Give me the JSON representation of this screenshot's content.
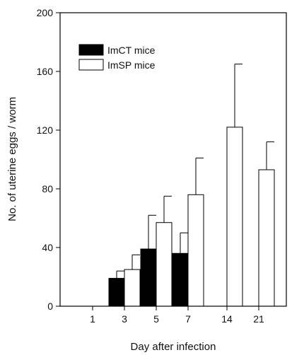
{
  "chart_data": {
    "type": "bar",
    "title": "",
    "xlabel": "Day after infection",
    "ylabel": "No. of uterine eggs / worm",
    "ylim": [
      0,
      200
    ],
    "yticks": [
      0,
      40,
      80,
      120,
      160,
      200
    ],
    "categories": [
      "1",
      "3",
      "5",
      "7",
      "14",
      "21"
    ],
    "legend_position": "top-left",
    "grid": false,
    "series": [
      {
        "name": "ImCT mice",
        "color": "#000000",
        "fill": "solid",
        "values": [
          null,
          19,
          39,
          36,
          null,
          null
        ],
        "errors": [
          null,
          5,
          23,
          14,
          null,
          null
        ]
      },
      {
        "name": "ImSP mice",
        "color": "#ffffff",
        "fill": "open",
        "values": [
          null,
          25,
          57,
          76,
          122,
          93
        ],
        "errors": [
          null,
          10,
          18,
          25,
          43,
          19
        ]
      }
    ]
  }
}
